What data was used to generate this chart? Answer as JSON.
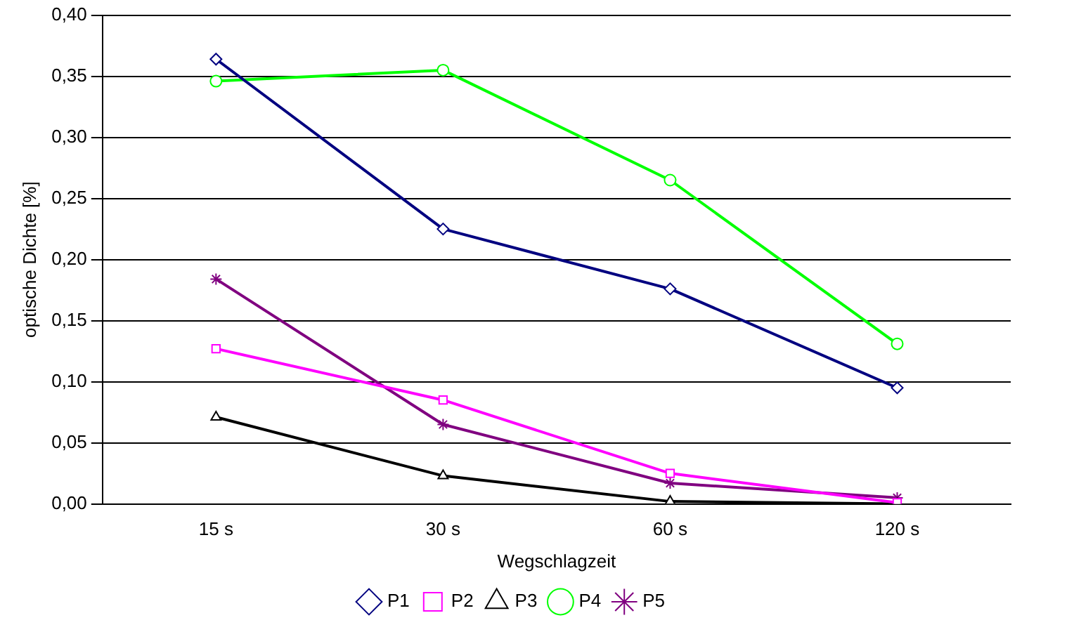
{
  "chart_data": {
    "type": "line",
    "xlabel": "Wegschlagzeit",
    "ylabel": "optische Dichte [%]",
    "categories": [
      "15 s",
      "30 s",
      "60 s",
      "120 s"
    ],
    "ylim": [
      0,
      0.4
    ],
    "yticks": [
      {
        "value": 0,
        "label": "0,00"
      },
      {
        "value": 0.05,
        "label": "0,05"
      },
      {
        "value": 0.1,
        "label": "0,10"
      },
      {
        "value": 0.15,
        "label": "0,15"
      },
      {
        "value": 0.2,
        "label": "0,20"
      },
      {
        "value": 0.25,
        "label": "0,25"
      },
      {
        "value": 0.3,
        "label": "0,30"
      },
      {
        "value": 0.35,
        "label": "0,35"
      },
      {
        "value": 0.4,
        "label": "0,40"
      }
    ],
    "grid": "y",
    "legend": "bottom",
    "line_style": "solid",
    "series": [
      {
        "name": "P1",
        "color": "#000080",
        "marker": "diamond",
        "values": [
          0.364,
          0.225,
          0.176,
          0.095
        ]
      },
      {
        "name": "P2",
        "color": "#ff00ff",
        "marker": "square",
        "values": [
          0.127,
          0.085,
          0.025,
          0.001
        ]
      },
      {
        "name": "P3",
        "color": "#000000",
        "marker": "triangle",
        "values": [
          0.071,
          0.023,
          0.002,
          0.0
        ]
      },
      {
        "name": "P4",
        "color": "#00ff00",
        "marker": "circle",
        "values": [
          0.346,
          0.355,
          0.265,
          0.131
        ]
      },
      {
        "name": "P5",
        "color": "#800080",
        "marker": "cross",
        "values": [
          0.184,
          0.065,
          0.017,
          0.005
        ]
      }
    ]
  }
}
